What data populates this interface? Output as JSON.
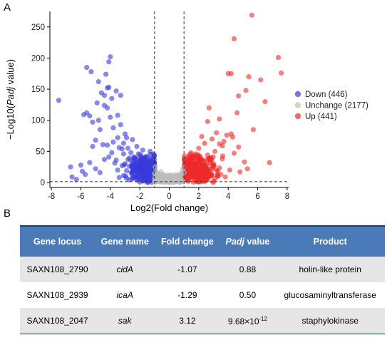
{
  "figure": {
    "panel_a": "A",
    "panel_b": "B"
  },
  "chart_data": {
    "type": "scatter",
    "title": "",
    "xlabel": "Log2(Fold change)",
    "ylabel_prefix": "−Log10(",
    "ylabel_italic": "Padj",
    "ylabel_suffix": " value)",
    "xlim": [
      -8.1,
      8.1
    ],
    "ylim": [
      -8,
      275
    ],
    "xticks": [
      -8,
      -6,
      -4,
      -2,
      0,
      2,
      4,
      6,
      8
    ],
    "yticks": [
      0,
      50,
      100,
      150,
      200,
      250
    ],
    "vlines": [
      -1,
      1
    ],
    "hline": 1.3,
    "legend_position": "right",
    "grid": false,
    "series": [
      {
        "name": "Down (446)",
        "color": "#3b3bdb",
        "points": [
          [
            -7.5,
            132
          ],
          [
            -6.7,
            25
          ],
          [
            -6.6,
            9
          ],
          [
            -6.3,
            5
          ],
          [
            -5.9,
            18
          ],
          [
            -5.8,
            109
          ],
          [
            -5.6,
            185
          ],
          [
            -5.6,
            112
          ],
          [
            -5.4,
            107
          ],
          [
            -5.3,
            178
          ],
          [
            -5.2,
            97
          ],
          [
            -5.2,
            58
          ],
          [
            -5.0,
            68
          ],
          [
            -5.0,
            22
          ],
          [
            -4.9,
            128
          ],
          [
            -4.8,
            162
          ],
          [
            -4.8,
            100
          ],
          [
            -4.7,
            85
          ],
          [
            -4.6,
            144
          ],
          [
            -4.5,
            61
          ],
          [
            -4.4,
            140
          ],
          [
            -4.4,
            124
          ],
          [
            -4.3,
            174
          ],
          [
            -4.2,
            152
          ],
          [
            -4.2,
            120
          ],
          [
            -4.2,
            60
          ],
          [
            -4.1,
            194
          ],
          [
            -4.1,
            153
          ],
          [
            -4.0,
            202
          ],
          [
            -4.0,
            105
          ],
          [
            -3.9,
            135
          ],
          [
            -3.9,
            48
          ],
          [
            -3.8,
            88
          ],
          [
            -3.8,
            65
          ],
          [
            -3.7,
            31
          ],
          [
            -3.6,
            147
          ],
          [
            -3.6,
            36
          ],
          [
            -3.5,
            108
          ],
          [
            -3.5,
            72
          ],
          [
            -3.5,
            20
          ],
          [
            -3.4,
            56
          ],
          [
            -3.3,
            140
          ],
          [
            -3.3,
            93
          ],
          [
            -3.2,
            27
          ],
          [
            -3.1,
            46
          ],
          [
            -3.1,
            63
          ],
          [
            -3.0,
            78
          ],
          [
            -2.9,
            72
          ],
          [
            -2.9,
            19
          ],
          [
            -5.4,
            32
          ],
          [
            -4.7,
            16
          ],
          [
            -4.4,
            37
          ],
          [
            -5.7,
            13
          ],
          [
            -6.0,
            28
          ],
          [
            -4.1,
            41
          ],
          [
            -2.8,
            37
          ],
          [
            -2.8,
            55
          ],
          [
            -2.6,
            48
          ],
          [
            -2.5,
            69
          ],
          [
            -2.4,
            41
          ],
          [
            -2.2,
            58
          ],
          [
            -2.1,
            46
          ],
          [
            -1.8,
            52
          ],
          [
            -1.7,
            41
          ],
          [
            -1.3,
            50
          ],
          [
            -1.2,
            38
          ],
          [
            -2.9,
            7
          ],
          [
            -3.0,
            30
          ],
          [
            -3.2,
            54
          ],
          [
            -2.7,
            26
          ],
          [
            -1.9,
            24
          ],
          [
            -1.5,
            30
          ],
          [
            -1.4,
            17
          ],
          [
            -1.3,
            23
          ],
          [
            -1.1,
            11
          ],
          [
            -1.2,
            28
          ],
          [
            -2.3,
            7
          ],
          [
            -2.6,
            16
          ],
          [
            -3.1,
            11
          ],
          [
            -3.4,
            8
          ]
        ]
      },
      {
        "name": "Unchange (2177)",
        "color": "#bdbdbd",
        "points": [
          [
            -0.95,
            25
          ],
          [
            -0.9,
            19
          ],
          [
            -0.85,
            15
          ],
          [
            -0.8,
            13
          ],
          [
            -0.7,
            11
          ],
          [
            -0.6,
            9
          ],
          [
            -0.5,
            7
          ],
          [
            -0.4,
            6
          ],
          [
            -0.3,
            4
          ],
          [
            -0.2,
            3
          ],
          [
            -0.1,
            2
          ],
          [
            0.0,
            1
          ],
          [
            0.1,
            2
          ],
          [
            0.2,
            3
          ],
          [
            0.3,
            4
          ],
          [
            0.4,
            6
          ],
          [
            0.5,
            7
          ],
          [
            0.6,
            9
          ],
          [
            0.7,
            11
          ],
          [
            0.8,
            13
          ],
          [
            0.85,
            16
          ],
          [
            0.9,
            20
          ],
          [
            0.95,
            24
          ],
          [
            -0.95,
            1
          ],
          [
            -0.7,
            2
          ],
          [
            -0.4,
            1
          ],
          [
            0.4,
            1
          ],
          [
            0.7,
            2
          ],
          [
            0.95,
            1
          ],
          [
            -0.8,
            5
          ],
          [
            0.8,
            5
          ],
          [
            -0.6,
            3
          ],
          [
            0.6,
            3
          ],
          [
            -0.9,
            8
          ],
          [
            0.9,
            8
          ],
          [
            -1.0,
            14
          ],
          [
            1.0,
            16
          ],
          [
            -0.55,
            13
          ],
          [
            0.55,
            12
          ]
        ]
      },
      {
        "name": "Up (441)",
        "color": "#ef2a2a",
        "points": [
          [
            5.6,
            269
          ],
          [
            4.4,
            231
          ],
          [
            7.4,
            201
          ],
          [
            7.6,
            176
          ],
          [
            4.0,
            175
          ],
          [
            4.2,
            175
          ],
          [
            5.4,
            170
          ],
          [
            6.2,
            165
          ],
          [
            5.2,
            148
          ],
          [
            4.7,
            139
          ],
          [
            6.5,
            130
          ],
          [
            2.7,
            120
          ],
          [
            4.6,
            112
          ],
          [
            3.4,
            102
          ],
          [
            2.6,
            98
          ],
          [
            5.7,
            85
          ],
          [
            3.2,
            80
          ],
          [
            4.2,
            78
          ],
          [
            3.9,
            76
          ],
          [
            4.3,
            73
          ],
          [
            3.7,
            66
          ],
          [
            2.2,
            74
          ],
          [
            2.9,
            70
          ],
          [
            3.4,
            62
          ],
          [
            3.6,
            59
          ],
          [
            4.7,
            57
          ],
          [
            2.4,
            63
          ],
          [
            2.0,
            55
          ],
          [
            4.4,
            47
          ],
          [
            5.1,
            33
          ],
          [
            6.8,
            32
          ],
          [
            2.0,
            34
          ],
          [
            3.0,
            25
          ],
          [
            4.1,
            20
          ],
          [
            4.8,
            17
          ],
          [
            5.3,
            22
          ],
          [
            2.5,
            14
          ],
          [
            3.3,
            10
          ],
          [
            3.8,
            9
          ],
          [
            2.6,
            4
          ],
          [
            3.6,
            38
          ],
          [
            1.8,
            46
          ],
          [
            1.5,
            39
          ],
          [
            2.3,
            29
          ],
          [
            2.6,
            44
          ],
          [
            1.2,
            26
          ],
          [
            1.6,
            21
          ],
          [
            2.7,
            36
          ],
          [
            3.1,
            50
          ],
          [
            2.1,
            18
          ],
          [
            1.4,
            13
          ],
          [
            1.1,
            9
          ],
          [
            2.9,
            12
          ],
          [
            1.3,
            6
          ],
          [
            1.9,
            8
          ]
        ]
      }
    ],
    "clusters": [
      {
        "series": 0,
        "cx": -1.6,
        "cy": 22,
        "sx": 0.5,
        "sy": 10,
        "n": 260
      },
      {
        "series": 1,
        "cx": 0,
        "cy": 5,
        "sx": 0.5,
        "sy": 4,
        "n": 220
      },
      {
        "series": 2,
        "cx": 1.9,
        "cy": 22,
        "sx": 0.6,
        "sy": 11,
        "n": 300
      }
    ]
  },
  "table": {
    "headers": [
      "Gene locus",
      "Gene name",
      "Fold change",
      "Padj value",
      "Product"
    ],
    "rows": [
      {
        "locus": "SAXN108_2790",
        "name": "cidA",
        "fold": "-1.07",
        "padj": "0.88",
        "product": "holin-like protein"
      },
      {
        "locus": "SAXN108_2939",
        "name": "icaA",
        "fold": "-1.29",
        "padj": "0.50",
        "product": "glucosaminyltransferase"
      },
      {
        "locus": "SAXN108_2047",
        "name": "sak",
        "fold": "3.12",
        "padj_base": "9.68×10",
        "padj_exp": "-12",
        "product": "staphylokinase"
      }
    ]
  }
}
